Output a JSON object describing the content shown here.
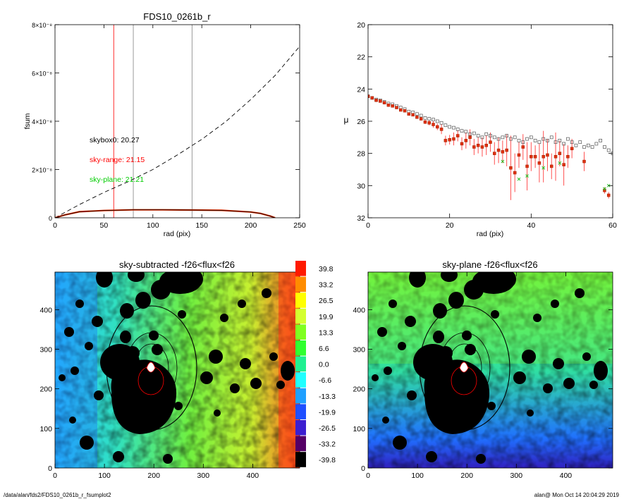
{
  "charts": {
    "profile": {
      "type": "line",
      "title": "FDS10_0261b_r",
      "xlabel": "rad (pix)",
      "ylabel": "fsum",
      "xlim": [
        0,
        250
      ],
      "ylim": [
        0,
        8e-08
      ],
      "xticks": [
        "0",
        "50",
        "100",
        "150",
        "200",
        "250"
      ],
      "yticks": [
        "0",
        "2×10⁻⁸",
        "4×10⁻⁸",
        "6×10⁻⁸",
        "8×10⁻⁸"
      ],
      "annotations": [
        {
          "text": "skybox0: 20.27",
          "color": "#000000"
        },
        {
          "text": "sky-range: 21.15",
          "color": "#ff0000"
        },
        {
          "text": "sky-plane: 21.21",
          "color": "#00cc00"
        }
      ],
      "vlines": [
        {
          "x": 60,
          "color": "#ff0000"
        },
        {
          "x": 80,
          "color": "#808080"
        },
        {
          "x": 140,
          "color": "#808080"
        }
      ],
      "series_dashed": {
        "x": [
          0,
          25,
          50,
          75,
          100,
          125,
          150,
          175,
          200,
          225,
          250
        ],
        "y": [
          0,
          5.5e-09,
          1.05e-08,
          1.5e-08,
          2e-08,
          2.6e-08,
          3.25e-08,
          4e-08,
          4.9e-08,
          5.9e-08,
          7.1e-08
        ]
      },
      "series_flat": {
        "x": [
          0,
          10,
          25,
          50,
          80,
          110,
          140,
          170,
          200,
          210,
          220,
          225
        ],
        "y": [
          0,
          1.2e-09,
          2.5e-09,
          3e-09,
          3.3e-09,
          3.3e-09,
          3.2e-09,
          3.1e-09,
          2.4e-09,
          1.8e-09,
          7e-10,
          0
        ]
      }
    },
    "surface_brightness": {
      "type": "scatter",
      "xlabel": "rad (pix)",
      "ylabel": "μ",
      "xlim": [
        0,
        60
      ],
      "ylim": [
        32,
        20
      ],
      "xticks": [
        "0",
        "20",
        "40",
        "60"
      ],
      "yticks": [
        "20",
        "22",
        "24",
        "26",
        "28",
        "30",
        "32"
      ],
      "gray_points": {
        "x": [
          0,
          1,
          2,
          3,
          4,
          5,
          6,
          7,
          8,
          9,
          10,
          11,
          12,
          13,
          14,
          15,
          16,
          17,
          18,
          19,
          20,
          21,
          22,
          23,
          24,
          25,
          26,
          27,
          28,
          29,
          30,
          31,
          32,
          33,
          34,
          35,
          36,
          37,
          38,
          39,
          40,
          41,
          42,
          43,
          44,
          45,
          46,
          47,
          48,
          49,
          50,
          51,
          52,
          53,
          54,
          55,
          56,
          57,
          58,
          59,
          60
        ],
        "y": [
          24.45,
          24.55,
          24.65,
          24.7,
          24.8,
          24.9,
          24.95,
          25.05,
          25.15,
          25.25,
          25.4,
          25.45,
          25.55,
          25.65,
          25.8,
          25.85,
          25.9,
          26.0,
          26.1,
          26.25,
          26.35,
          26.4,
          26.5,
          26.6,
          26.65,
          26.8,
          26.75,
          26.9,
          27.0,
          26.8,
          26.9,
          27.0,
          27.1,
          27.0,
          26.9,
          27.1,
          27.0,
          27.2,
          27.3,
          27.1,
          27.0,
          27.2,
          27.3,
          27.1,
          27.2,
          27.0,
          27.3,
          27.2,
          27.4,
          27.1,
          27.3,
          27.5,
          27.3,
          27.6,
          27.5,
          27.6,
          27.4,
          27.2,
          27.6,
          27.8,
          28.0
        ]
      },
      "red_points": {
        "x": [
          0,
          1,
          2,
          3,
          4,
          5,
          6,
          7,
          8,
          9,
          10,
          11,
          12,
          13,
          14,
          15,
          16,
          17,
          18,
          19,
          20,
          21,
          22,
          23,
          24,
          25,
          26,
          27,
          28,
          29,
          30,
          31,
          32,
          33,
          34,
          35,
          36,
          37,
          38,
          39,
          40,
          41,
          42,
          43,
          44,
          45,
          46,
          47,
          48,
          49,
          50,
          53,
          58,
          59
        ],
        "y": [
          24.45,
          24.55,
          24.7,
          24.75,
          24.85,
          25.0,
          25.05,
          25.15,
          25.3,
          25.35,
          25.55,
          25.6,
          25.75,
          25.85,
          26.05,
          26.1,
          26.2,
          26.35,
          26.5,
          27.2,
          27.15,
          27.1,
          26.9,
          27.4,
          27.2,
          27.0,
          27.6,
          27.5,
          27.6,
          27.5,
          27.3,
          28.0,
          27.8,
          27.9,
          27.8,
          28.9,
          29.2,
          28.1,
          27.6,
          28.8,
          28.2,
          28.2,
          28.6,
          28.2,
          28.1,
          28.8,
          28.2,
          28.0,
          28.7,
          28.2,
          27.7,
          28.5,
          30.3,
          30.6
        ],
        "err": [
          0.05,
          0.05,
          0.05,
          0.05,
          0.05,
          0.05,
          0.06,
          0.06,
          0.06,
          0.07,
          0.08,
          0.08,
          0.09,
          0.1,
          0.12,
          0.15,
          0.2,
          0.2,
          0.3,
          0.3,
          0.3,
          0.4,
          0.35,
          0.4,
          0.5,
          0.5,
          0.5,
          0.5,
          0.6,
          0.6,
          0.6,
          0.7,
          0.8,
          0.7,
          1.0,
          2.0,
          1.2,
          0.8,
          0.8,
          1.5,
          0.9,
          0.7,
          1.2,
          1.6,
          1.0,
          0.8,
          1.5,
          0.8,
          1.3,
          0.7,
          0.6,
          0.6,
          0.2,
          0.2
        ]
      },
      "green_points": {
        "x": [
          33,
          37,
          39,
          43,
          47,
          58,
          59
        ],
        "y": [
          28.5,
          29.6,
          29.4,
          28.9,
          28.6,
          30.2,
          30.0
        ]
      }
    },
    "maps": [
      {
        "title": "sky-subtracted -f26<flux<f26",
        "xlabel_ticks": [
          "0",
          "100",
          "200",
          "300",
          "400"
        ],
        "ylabel_ticks": [
          "0",
          "100",
          "200",
          "300",
          "400"
        ]
      },
      {
        "title": "sky-plane -f26<flux<f26",
        "xlabel_ticks": [
          "0",
          "100",
          "200",
          "300",
          "400"
        ],
        "ylabel_ticks": [
          "0",
          "100",
          "200",
          "300",
          "400"
        ]
      }
    ],
    "colorbar": {
      "labels": [
        "39.8",
        "33.2",
        "26.5",
        "19.9",
        "13.3",
        "6.6",
        "0.0",
        "-6.6",
        "-13.3",
        "-19.9",
        "-26.5",
        "-33.2",
        "-39.8"
      ],
      "colors": [
        "#ff1a00",
        "#ff8c00",
        "#ffff00",
        "#d4ff30",
        "#80ff20",
        "#30ff30",
        "#20f090",
        "#20ffff",
        "#20a0ff",
        "#1f4fff",
        "#3c1fd0",
        "#550066",
        "#000000"
      ]
    }
  },
  "footer": {
    "left": "/data/alan/fds2/FDS10_0261b_r_fsumplot2",
    "right": "alan@  Mon Oct 14 20:04:29 2019"
  }
}
